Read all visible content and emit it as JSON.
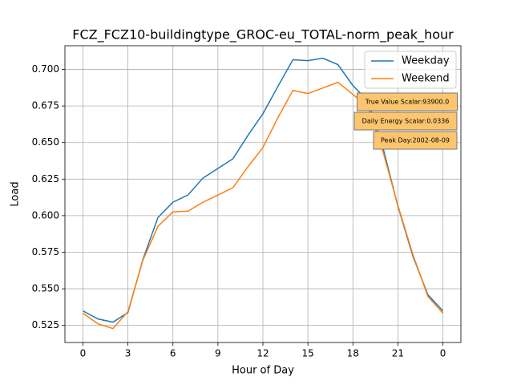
{
  "chart_data": {
    "type": "line",
    "title": "FCZ_FCZ10-buildingtype_GROC-eu_TOTAL-norm_peak_hour",
    "x_label": "Hour of Day",
    "y_label": "Load",
    "x": [
      0,
      1,
      2,
      3,
      4,
      5,
      6,
      7,
      8,
      9,
      10,
      11,
      12,
      13,
      14,
      15,
      16,
      17,
      18,
      19,
      20,
      21,
      22,
      23,
      24
    ],
    "series": [
      {
        "name": "Weekday",
        "color": "#1f77b4",
        "values": [
          0.5349,
          0.5294,
          0.5272,
          0.5338,
          0.5701,
          0.5987,
          0.6092,
          0.6141,
          0.6257,
          0.6323,
          0.6389,
          0.6549,
          0.6697,
          0.6884,
          0.7066,
          0.706,
          0.7077,
          0.7033,
          0.689,
          0.6785,
          0.6466,
          0.6064,
          0.5723,
          0.5459,
          0.5349
        ]
      },
      {
        "name": "Weekend",
        "color": "#ff7f0e",
        "values": [
          0.5333,
          0.5261,
          0.5228,
          0.5344,
          0.5696,
          0.5927,
          0.6026,
          0.6031,
          0.6092,
          0.6141,
          0.6191,
          0.6334,
          0.6466,
          0.667,
          0.6857,
          0.6835,
          0.6873,
          0.6912,
          0.6829,
          0.6741,
          0.6439,
          0.607,
          0.5734,
          0.5448,
          0.5333
        ]
      }
    ],
    "xlim": [
      -1.2,
      25.2
    ],
    "xticks": [
      0,
      3,
      6,
      9,
      12,
      15,
      18,
      21,
      {
        "value": 24,
        "label": "0"
      }
    ],
    "ylim": [
      0.5133,
      0.7162
    ],
    "yticks": [
      {
        "value": 0.525,
        "label": "0.525"
      },
      {
        "value": 0.55,
        "label": "0.550"
      },
      {
        "value": 0.575,
        "label": "0.575"
      },
      {
        "value": 0.6,
        "label": "0.600"
      },
      {
        "value": 0.625,
        "label": "0.625"
      },
      {
        "value": 0.65,
        "label": "0.650"
      },
      {
        "value": 0.675,
        "label": "0.675"
      },
      {
        "value": 0.7,
        "label": "0.700"
      }
    ],
    "grid": true,
    "legend": "upper right",
    "annotations": [
      "True Value Scalar:93900.0",
      "Daily Energy Scalar:0.0336",
      "Peak Day:2002-08-09"
    ]
  }
}
